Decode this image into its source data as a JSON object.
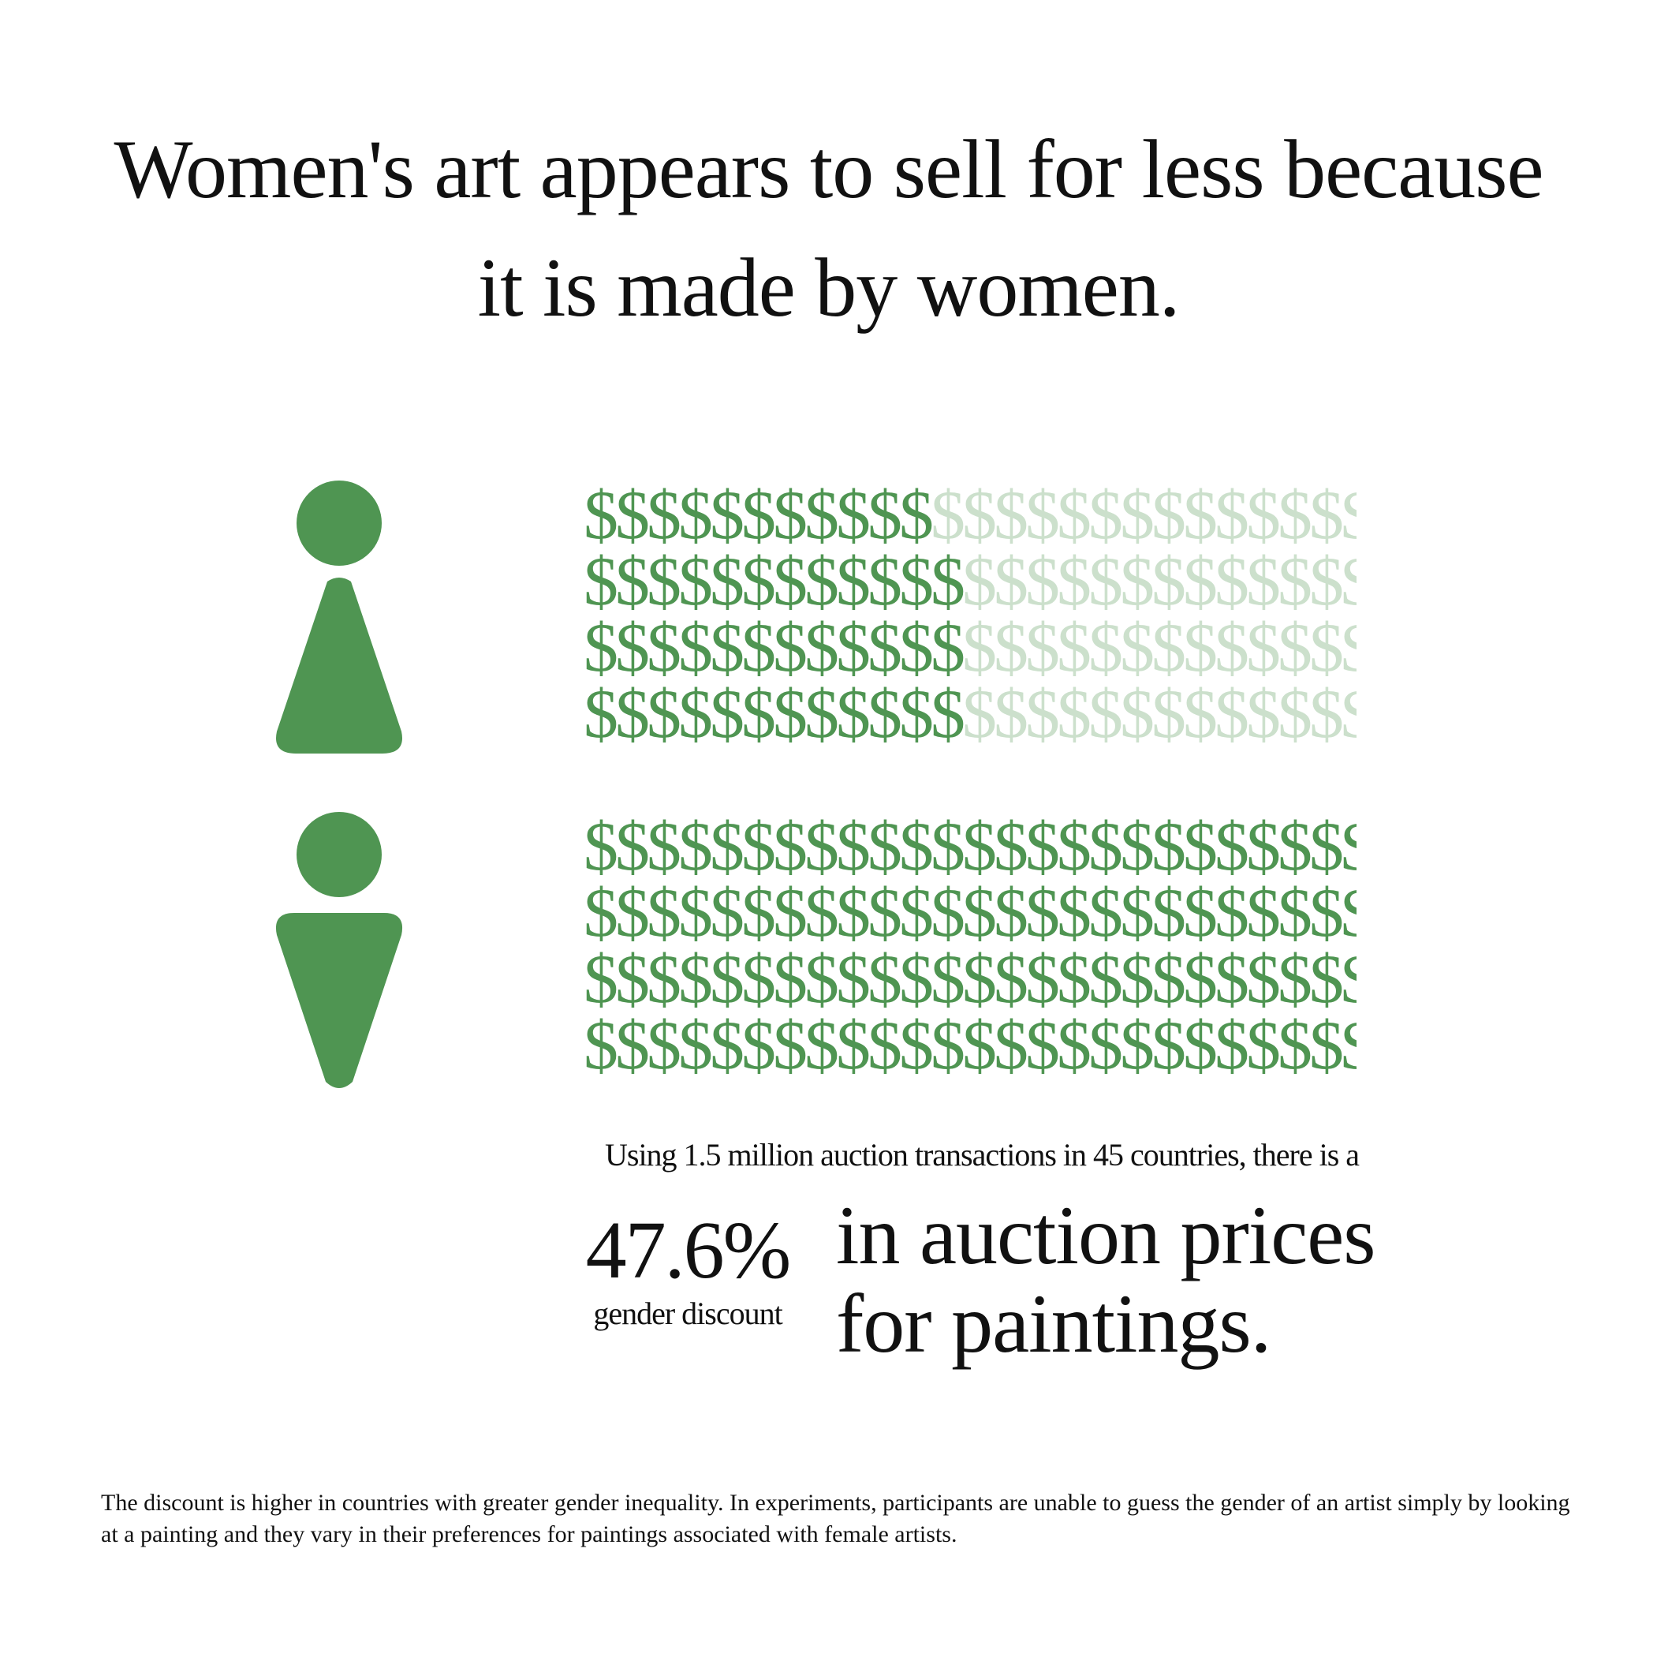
{
  "title": {
    "line1": "Women's art appears to sell for less  because",
    "line2": "it is made by women."
  },
  "colors": {
    "accent": "#4f9552",
    "faded": "#cce0cc"
  },
  "icons": {
    "female": "female-figure-icon",
    "male": "male-figure-icon"
  },
  "chart_data": {
    "type": "pictogram",
    "symbol": "$",
    "symbols_per_row": 25,
    "series": [
      {
        "icon": "female-figure-icon",
        "filled_per_row": [
          11,
          12,
          12,
          12
        ]
      },
      {
        "icon": "male-figure-icon",
        "filled_per_row": [
          25,
          25,
          25,
          25
        ]
      }
    ]
  },
  "subline": "Using 1.5 million auction transactions in 45 countries,  there is a",
  "stat": {
    "value": "47.6%",
    "label": "gender discount"
  },
  "headline": {
    "line1": "in auction prices",
    "line2": "for paintings."
  },
  "footnote": "The discount is higher in countries with greater gender inequality. In experiments, participants are unable to guess the gender of an artist simply by looking at a painting and they vary in their preferences for paintings associated with female artists."
}
